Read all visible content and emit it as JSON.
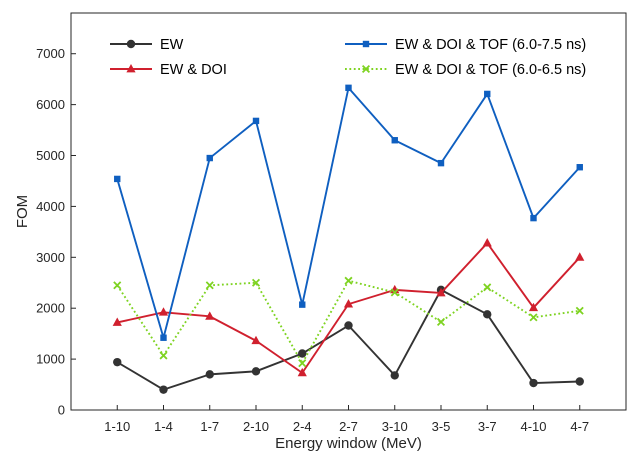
{
  "chart_data": {
    "type": "line",
    "title": "",
    "xlabel": "Energy window (MeV)",
    "ylabel": "FOM",
    "categories": [
      "1-10",
      "1-4",
      "1-7",
      "2-10",
      "2-4",
      "2-7",
      "3-10",
      "3-5",
      "3-7",
      "4-10",
      "4-7"
    ],
    "ylim": [
      0,
      7800
    ],
    "yticks": [
      0,
      1000,
      2000,
      3000,
      4000,
      5000,
      6000,
      7000
    ],
    "grid": false,
    "legend_position": "top",
    "series": [
      {
        "name": "EW",
        "color": "#333333",
        "marker": "circle",
        "line": "solid",
        "values": [
          940,
          400,
          700,
          760,
          1110,
          1660,
          680,
          2360,
          1880,
          530,
          560
        ]
      },
      {
        "name": "EW & DOI",
        "color": "#d0202e",
        "marker": "triangle",
        "line": "solid",
        "values": [
          1720,
          1920,
          1840,
          1360,
          730,
          2080,
          2360,
          2300,
          3280,
          2010,
          3000
        ]
      },
      {
        "name": "EW & DOI & TOF (6.0-7.5 ns)",
        "color": "#0f5fc0",
        "marker": "square",
        "line": "solid",
        "values": [
          4540,
          1420,
          4950,
          5680,
          2070,
          6330,
          5300,
          4850,
          6210,
          3770,
          4770
        ]
      },
      {
        "name": "EW & DOI & TOF (6.0-6.5 ns)",
        "color": "#7ed321",
        "marker": "x",
        "line": "dotted",
        "values": [
          2450,
          1070,
          2450,
          2500,
          920,
          2540,
          2310,
          1730,
          2410,
          1820,
          1950
        ]
      }
    ]
  }
}
